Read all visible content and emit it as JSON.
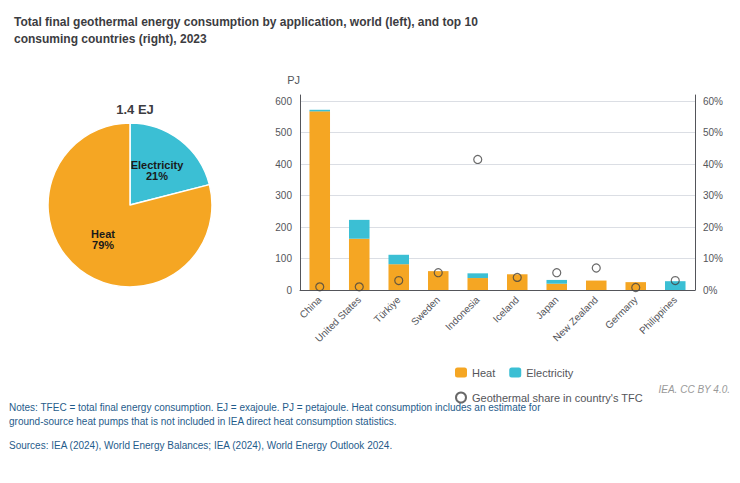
{
  "chart_data": [
    {
      "type": "pie",
      "title": "1.4 EJ",
      "categories": [
        "Electricity",
        "Heat"
      ],
      "values": [
        21,
        79
      ],
      "value_labels": [
        "21%",
        "79%"
      ],
      "data_labels": true,
      "colors": [
        "#3BBFD4",
        "#F5A623"
      ]
    },
    {
      "type": "bar",
      "title": "Total final geothermal energy consumption by application, world (left), and top 10\nconsuming countries (right), 2023",
      "categories": [
        "China",
        "United States",
        "Türkiye",
        "Sweden",
        "Indonesia",
        "Iceland",
        "Japan",
        "New Zealand",
        "Germany",
        "Philippines"
      ],
      "series": [
        {
          "name": "Heat",
          "color": "#F5A623",
          "values": [
            568,
            163,
            82,
            60,
            38,
            50,
            20,
            30,
            25,
            0
          ]
        },
        {
          "name": "Electricity",
          "color": "#3BBFD4",
          "values": [
            5,
            60,
            30,
            0,
            15,
            0,
            12,
            0,
            0,
            28
          ]
        },
        {
          "name": "Geothermal share in country's TFC",
          "type": "scatter",
          "axis": "y2",
          "marker": "circle",
          "color": "#444444",
          "values": [
            1.0,
            1.0,
            3.0,
            5.5,
            41.5,
            4.0,
            5.5,
            7.0,
            0.8,
            3.0
          ]
        }
      ],
      "stacked": true,
      "ylabel": "PJ",
      "ylim": [
        0,
        620
      ],
      "yticks": [
        0,
        100,
        200,
        300,
        400,
        500,
        600
      ],
      "y2lim": [
        0,
        62
      ],
      "y2ticks": [
        {
          "value": 0,
          "label": "0%"
        },
        {
          "value": 10,
          "label": "10%"
        },
        {
          "value": 20,
          "label": "20%"
        },
        {
          "value": 30,
          "label": "30%"
        },
        {
          "value": 40,
          "label": "40%"
        },
        {
          "value": 50,
          "label": "50%"
        },
        {
          "value": 60,
          "label": "60%"
        }
      ],
      "grid": true,
      "legend": "bottom",
      "annotations": [
        "IEA. CC BY 4.0.",
        "Notes: TFEC = total final energy consumption. EJ = exajoule. PJ = petajoule. Heat consumption includes an estimate for\nground-source heat pumps that is not included in IEA direct heat consumption statistics.",
        "Sources: IEA (2024), World Energy Balances; IEA (2024), World Energy Outlook 2024."
      ]
    }
  ]
}
